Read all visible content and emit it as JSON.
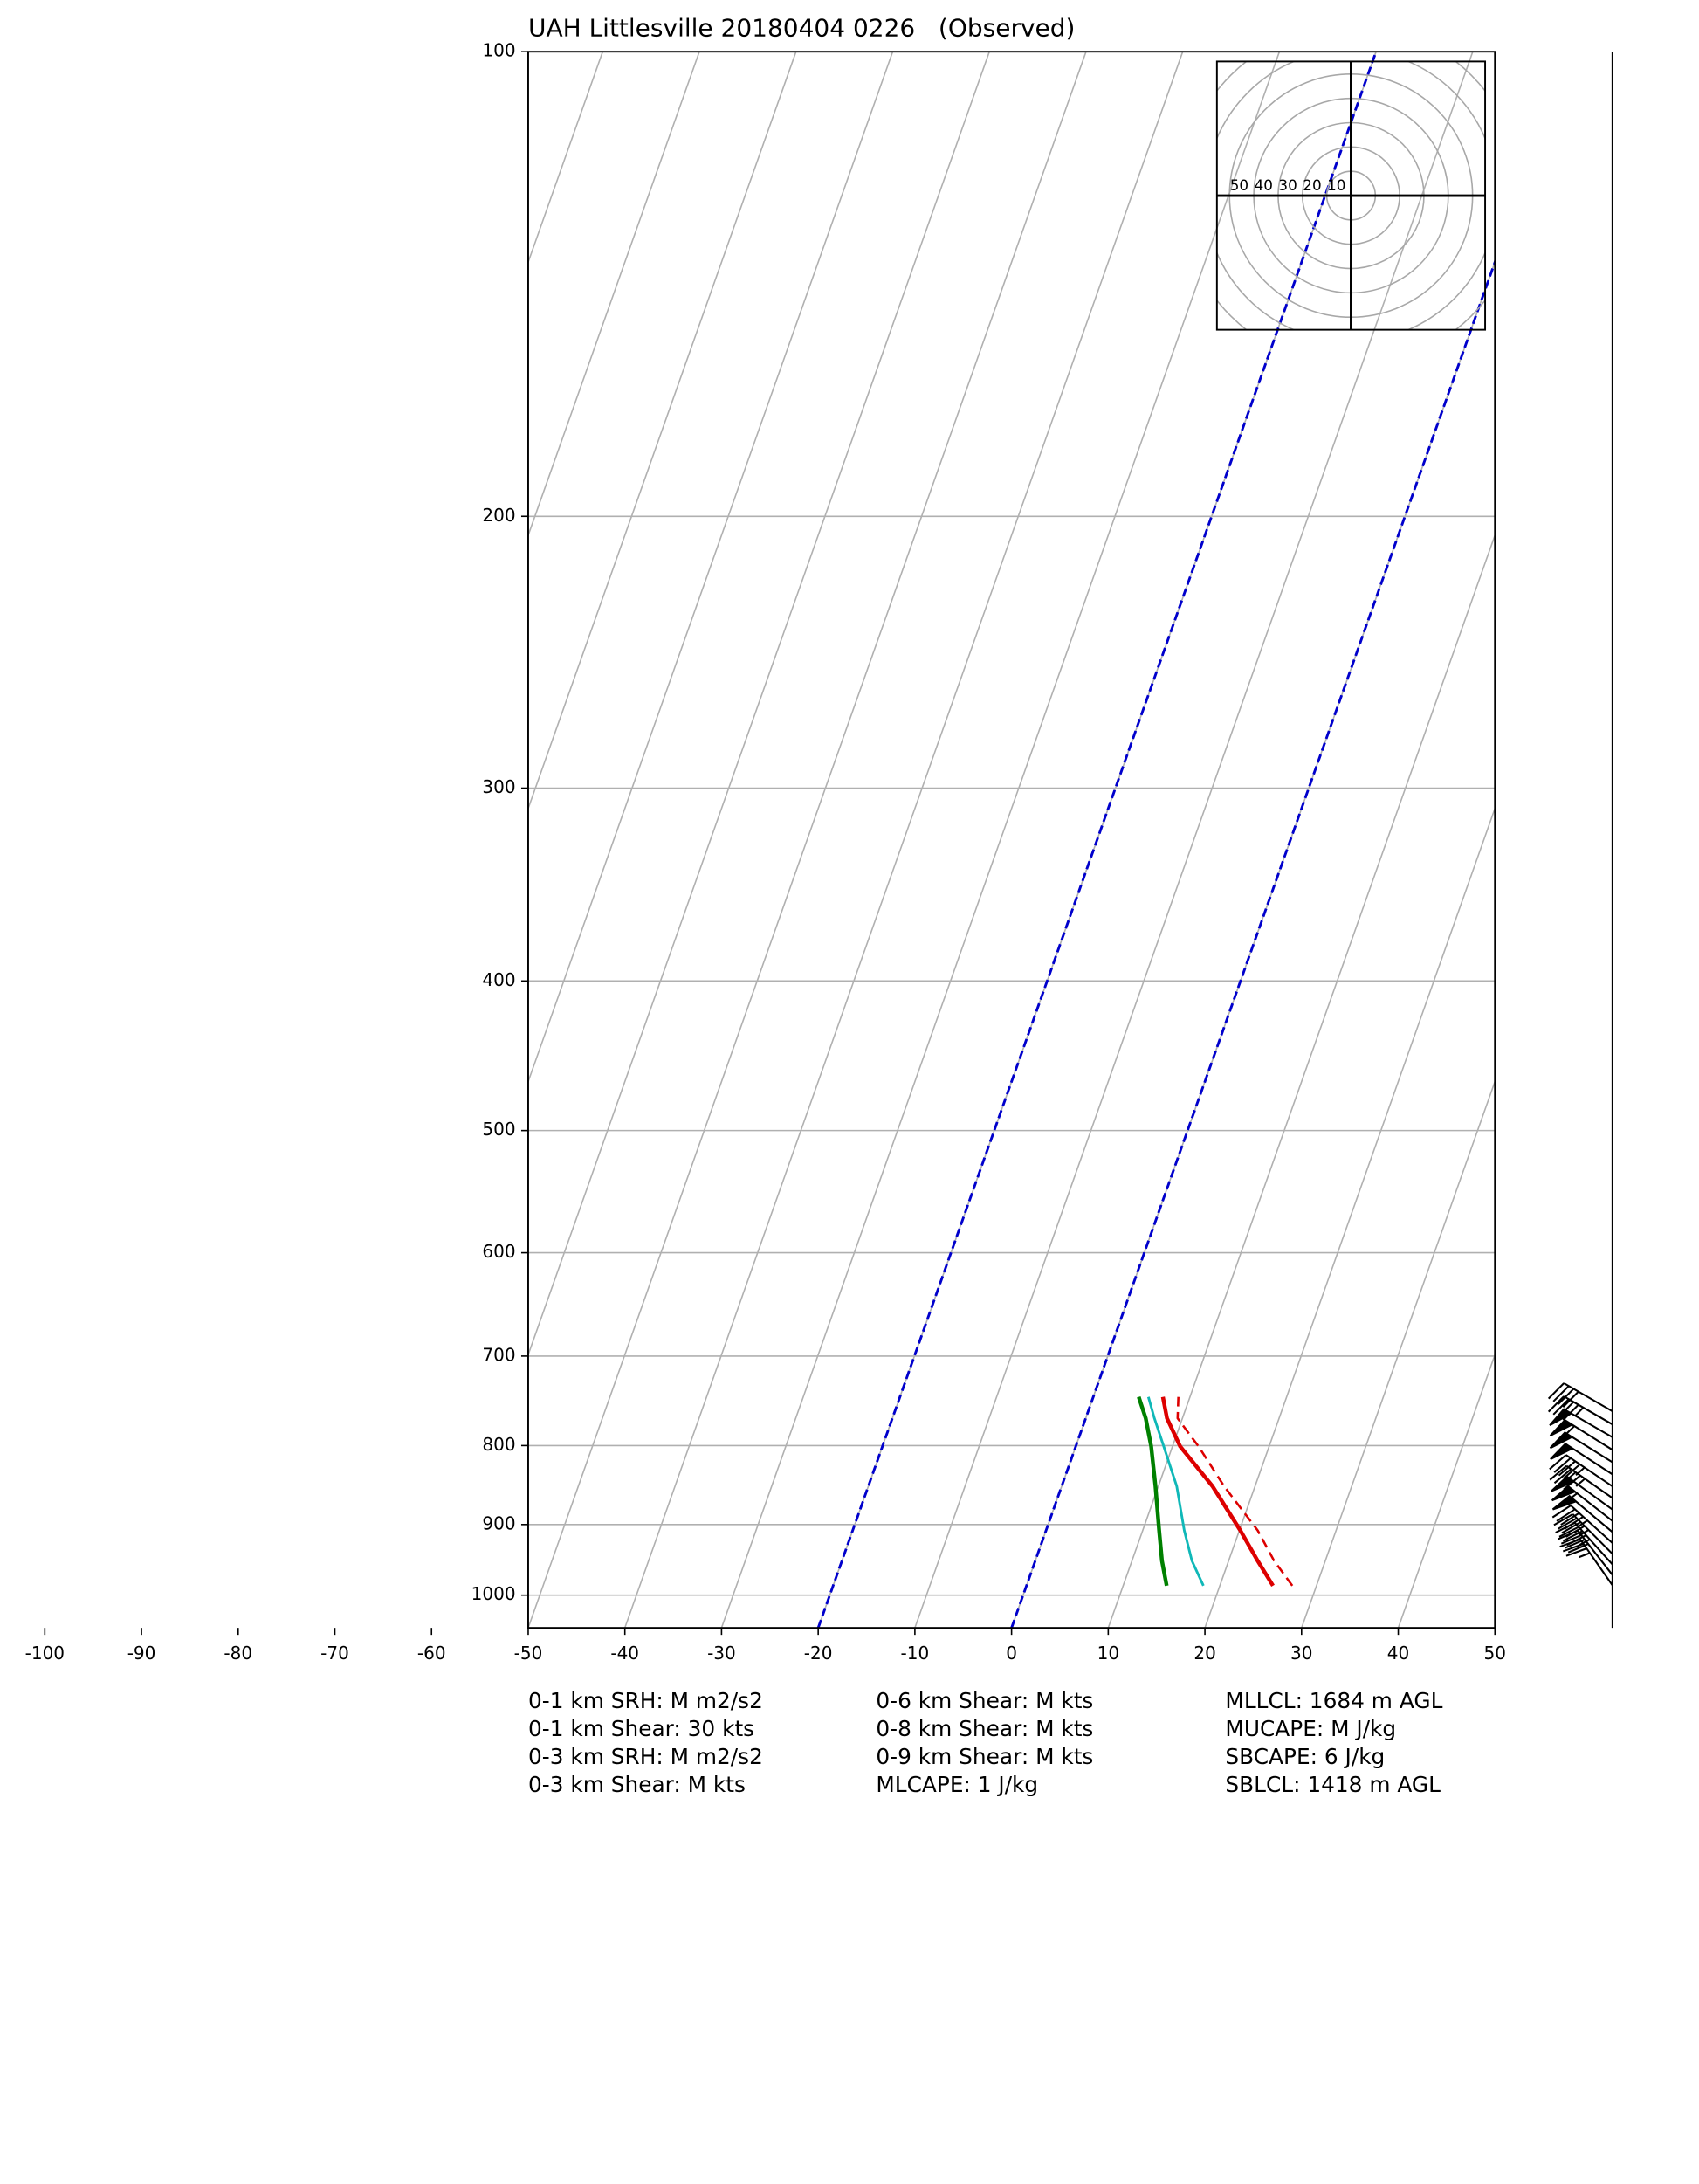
{
  "chart_data": {
    "type": "skewt",
    "title": "UAH Littlesville 20180404 0226   (Observed)",
    "xlim": [
      -50,
      50
    ],
    "xticks": [
      -100,
      -90,
      -80,
      -70,
      -60,
      -50,
      -40,
      -30,
      -20,
      -10,
      0,
      10,
      20,
      30,
      40,
      50
    ],
    "ylim": [
      1050,
      100
    ],
    "yticks": [
      100,
      200,
      300,
      400,
      500,
      600,
      700,
      800,
      900,
      1000
    ],
    "grid": true,
    "grid_color": "#b0b0b0",
    "highlight_isotherms": [
      -20,
      0
    ],
    "highlight_color": "#0000cc",
    "pressure": [
      986,
      950,
      908,
      850,
      801,
      768,
      744
    ],
    "series": [
      {
        "color": "#dd0000",
        "values": [
          27.5,
          24.7,
          21.9,
          16.8,
          12.7,
          9.5,
          8.8
        ],
        "dashed": true,
        "width": 1.6
      },
      {
        "color": "#dd0000",
        "values": [
          25.5,
          23.0,
          20.1,
          15.6,
          10.8,
          8.4,
          7.2
        ],
        "dashed": false,
        "width": 2.8
      },
      {
        "color": "#10b8b8",
        "values": [
          18.3,
          16.2,
          14.3,
          11.9,
          9.1,
          7.1,
          5.7
        ],
        "dashed": false,
        "width": 1.8
      },
      {
        "color": "#008000",
        "values": [
          14.5,
          13.1,
          11.7,
          9.7,
          7.8,
          6.2,
          4.7
        ],
        "dashed": false,
        "width": 2.8
      }
    ],
    "wind": {
      "pressure": [
        985,
        970,
        955,
        940,
        925,
        910,
        895,
        880,
        865,
        850,
        835,
        820,
        805,
        790,
        775,
        760
      ],
      "speed": [
        35,
        40,
        45,
        45,
        45,
        50,
        55,
        50,
        45,
        45,
        50,
        50,
        55,
        50,
        45,
        40
      ],
      "direction": [
        215,
        218,
        222,
        225,
        228,
        230,
        232,
        234,
        235,
        236,
        237,
        238,
        238,
        240,
        240,
        240
      ]
    },
    "hodograph": {
      "rings": [
        10,
        20,
        30,
        40,
        50,
        60,
        70,
        80
      ],
      "labeled_rings": [
        50,
        40,
        30,
        20,
        10
      ]
    },
    "annotations": [
      [
        "0-1 km SRH: M m2/s2",
        "0-1 km Shear: 30 kts",
        "0-3 km SRH: M m2/s2",
        "0-3 km Shear: M kts"
      ],
      [
        "0-6 km Shear: M kts",
        "0-8 km Shear: M kts",
        "0-9 km Shear: M kts",
        "MLCAPE: 1 J/kg"
      ],
      [
        "MLLCL: 1684 m AGL",
        "MUCAPE: M J/kg",
        "SBCAPE: 6 J/kg",
        "SBLCL: 1418 m AGL"
      ]
    ]
  }
}
